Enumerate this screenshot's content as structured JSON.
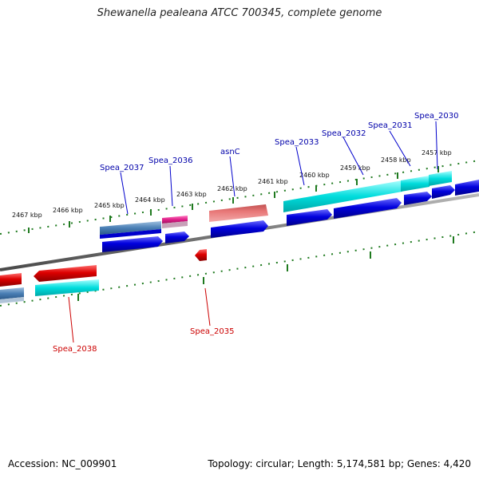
{
  "title": "Shewanella pealeana ATCC 700345, complete genome",
  "footer": {
    "accession": "Accession: NC_009901",
    "summary": "Topology: circular; Length: 5,174,581 bp; Genes: 4,420"
  },
  "ticks": [
    "2457 kbp",
    "2458 kbp",
    "2459 kbp",
    "2460 kbp",
    "2461 kbp",
    "2462 kbp",
    "2463 kbp",
    "2464 kbp",
    "2465 kbp",
    "2466 kbp",
    "2467 kbp"
  ],
  "genes_plus": [
    "Spea_2030",
    "Spea_2031",
    "Spea_2032",
    "Spea_2033",
    "asnC",
    "Spea_2036",
    "Spea_2037"
  ],
  "genes_minus": [
    "Spea_2035",
    "Spea_2038"
  ],
  "colors": {
    "forward_cds": "#0000cc",
    "reverse_cds": "#cc0000",
    "feature_cyan": "#00d8d8",
    "feature_steel": "#4a7fb5",
    "feature_pink": "#e0208a",
    "feature_salmon": "#e87878",
    "backbone": "#7a7a7a",
    "tick_green": "#1f7a1f",
    "label_plus": "#0000aa",
    "label_minus": "#cc0000"
  }
}
